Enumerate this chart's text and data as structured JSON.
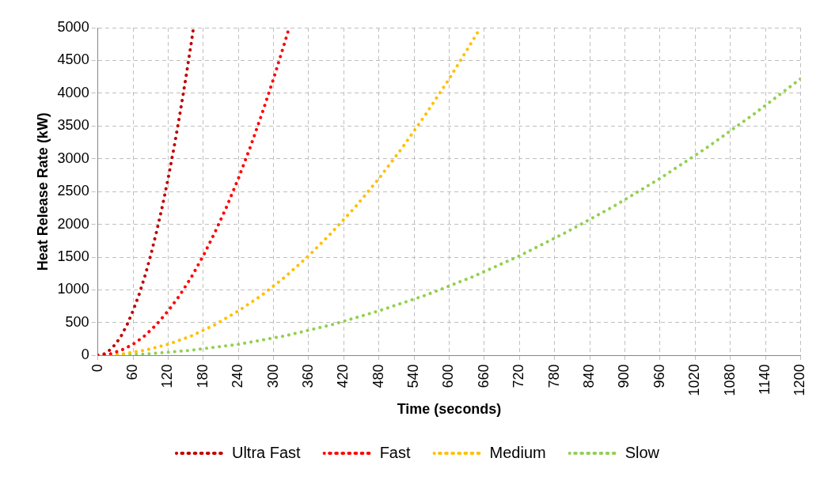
{
  "chart_data": {
    "type": "line",
    "xlabel": "Time (seconds)",
    "ylabel": "Heat Release Rate (kW)",
    "xlim": [
      0,
      1200
    ],
    "xticks": [
      0,
      60,
      120,
      180,
      240,
      300,
      360,
      420,
      480,
      540,
      600,
      660,
      720,
      780,
      840,
      900,
      960,
      1020,
      1080,
      1140,
      1200
    ],
    "ylim": [
      0,
      5000
    ],
    "yticks": [
      0,
      500,
      1000,
      1500,
      2000,
      2500,
      3000,
      3500,
      4000,
      4500,
      5000
    ],
    "grid": true,
    "legend": "bottom",
    "marker": "none",
    "line_style": "dotted",
    "series": [
      {
        "name": "Ultra Fast",
        "color": "#c00000",
        "x": [
          0,
          10,
          20,
          30,
          40,
          50,
          60,
          70,
          80,
          90,
          100,
          110,
          120,
          130,
          140,
          150,
          160,
          163
        ],
        "values": [
          0,
          20,
          80,
          170,
          300,
          470,
          680,
          920,
          1200,
          1520,
          1880,
          2270,
          2700,
          3170,
          3680,
          4220,
          4800,
          4980
        ]
      },
      {
        "name": "Fast",
        "color": "#ff0000",
        "x": [
          0,
          20,
          40,
          60,
          80,
          100,
          120,
          140,
          160,
          180,
          200,
          220,
          240,
          260,
          280,
          300,
          320,
          326
        ],
        "values": [
          0,
          20,
          80,
          170,
          300,
          470,
          680,
          920,
          1200,
          1520,
          1880,
          2270,
          2700,
          3170,
          3680,
          4220,
          4800,
          4980
        ]
      },
      {
        "name": "Medium",
        "color": "#ffc000",
        "x": [
          0,
          40,
          80,
          120,
          160,
          200,
          240,
          280,
          320,
          360,
          400,
          440,
          480,
          520,
          560,
          600,
          640,
          652
        ],
        "values": [
          0,
          20,
          80,
          170,
          300,
          470,
          680,
          920,
          1200,
          1520,
          1880,
          2270,
          2700,
          3170,
          3680,
          4220,
          4800,
          4980
        ]
      },
      {
        "name": "Slow",
        "color": "#92d050",
        "x": [
          0,
          80,
          160,
          240,
          320,
          400,
          480,
          560,
          640,
          720,
          800,
          880,
          960,
          1040,
          1120,
          1200
        ],
        "values": [
          0,
          20,
          80,
          170,
          300,
          470,
          680,
          920,
          1200,
          1520,
          1880,
          2270,
          2700,
          3170,
          3680,
          4220
        ]
      }
    ]
  }
}
